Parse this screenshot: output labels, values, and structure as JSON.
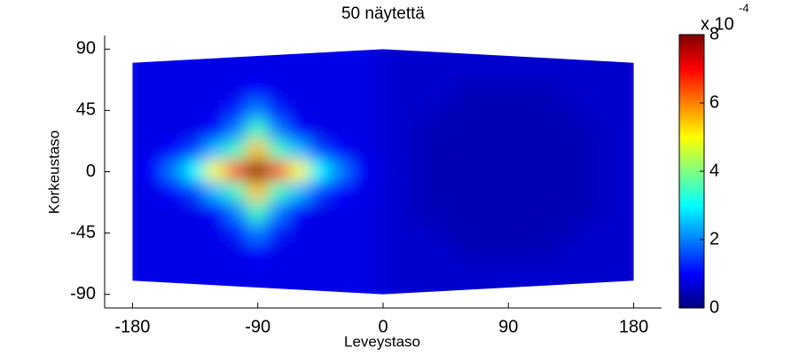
{
  "chart_data": {
    "type": "heatmap",
    "title": "50 näytettä",
    "xlabel": "Leveystaso",
    "ylabel": "Korkeustaso",
    "colormap": "jet",
    "x": [
      -180,
      -165,
      -150,
      -135,
      -120,
      -105,
      -90,
      -75,
      -60,
      -45,
      -30,
      -15,
      0,
      15,
      30,
      45,
      60,
      75,
      90,
      105,
      120,
      135,
      150,
      165,
      180
    ],
    "y": [
      90,
      75,
      60,
      45,
      30,
      15,
      0,
      -15,
      -30,
      -45,
      -60,
      -75,
      -90
    ],
    "values": [
      [
        0.8,
        0.8,
        0.8,
        0.8,
        0.8,
        0.8,
        0.8,
        0.8,
        0.8,
        0.8,
        0.8,
        0.8,
        0.7,
        0.6,
        0.6,
        0.6,
        0.6,
        0.6,
        0.6,
        0.6,
        0.6,
        0.6,
        0.6,
        0.6,
        0.6
      ],
      [
        0.8,
        0.8,
        0.8,
        0.8,
        0.8,
        0.8,
        0.8,
        0.8,
        0.8,
        0.8,
        0.8,
        0.8,
        0.7,
        0.6,
        0.6,
        0.6,
        0.6,
        0.6,
        0.6,
        0.6,
        0.6,
        0.6,
        0.6,
        0.6,
        0.6
      ],
      [
        0.8,
        0.8,
        0.8,
        0.8,
        0.8,
        0.8,
        1.0,
        0.8,
        0.8,
        0.8,
        0.8,
        0.8,
        0.7,
        0.6,
        0.6,
        0.6,
        0.45,
        0.45,
        0.45,
        0.45,
        0.45,
        0.6,
        0.6,
        0.6,
        0.6
      ],
      [
        0.8,
        0.8,
        0.8,
        0.8,
        0.8,
        1.2,
        2.0,
        1.2,
        0.8,
        0.8,
        0.8,
        0.8,
        0.7,
        0.6,
        0.6,
        0.45,
        0.45,
        0.4,
        0.4,
        0.4,
        0.45,
        0.45,
        0.6,
        0.6,
        0.6
      ],
      [
        0.8,
        0.8,
        0.8,
        0.8,
        1.0,
        2.0,
        3.5,
        2.0,
        1.0,
        0.8,
        0.8,
        0.8,
        0.7,
        0.6,
        0.45,
        0.45,
        0.4,
        0.4,
        0.4,
        0.4,
        0.4,
        0.45,
        0.45,
        0.6,
        0.6
      ],
      [
        0.8,
        0.8,
        1.0,
        1.5,
        2.5,
        3.5,
        5.5,
        3.5,
        2.5,
        1.5,
        1.0,
        0.8,
        0.7,
        0.6,
        0.45,
        0.4,
        0.4,
        0.4,
        0.4,
        0.4,
        0.4,
        0.4,
        0.45,
        0.6,
        0.6
      ],
      [
        0.8,
        1.0,
        2.0,
        3.0,
        5.0,
        6.5,
        8.0,
        6.5,
        5.0,
        3.0,
        2.0,
        1.0,
        0.7,
        0.6,
        0.45,
        0.4,
        0.4,
        0.4,
        0.4,
        0.4,
        0.4,
        0.4,
        0.45,
        0.6,
        0.6
      ],
      [
        0.8,
        0.8,
        1.0,
        1.5,
        2.5,
        3.5,
        5.5,
        3.5,
        2.5,
        1.5,
        1.0,
        0.8,
        0.7,
        0.6,
        0.45,
        0.4,
        0.4,
        0.4,
        0.4,
        0.4,
        0.4,
        0.4,
        0.45,
        0.6,
        0.6
      ],
      [
        0.8,
        0.8,
        0.8,
        0.8,
        1.0,
        2.0,
        3.5,
        2.0,
        1.0,
        0.8,
        0.8,
        0.8,
        0.7,
        0.6,
        0.45,
        0.45,
        0.4,
        0.4,
        0.4,
        0.4,
        0.4,
        0.45,
        0.45,
        0.6,
        0.6
      ],
      [
        0.8,
        0.8,
        0.8,
        0.8,
        0.8,
        1.2,
        2.0,
        1.2,
        0.8,
        0.8,
        0.8,
        0.8,
        0.7,
        0.6,
        0.6,
        0.45,
        0.45,
        0.4,
        0.4,
        0.4,
        0.45,
        0.45,
        0.6,
        0.6,
        0.6
      ],
      [
        0.8,
        0.8,
        0.8,
        0.8,
        0.8,
        0.8,
        1.0,
        0.8,
        0.8,
        0.8,
        0.8,
        0.8,
        0.7,
        0.6,
        0.6,
        0.6,
        0.45,
        0.45,
        0.45,
        0.45,
        0.45,
        0.6,
        0.6,
        0.6,
        0.6
      ],
      [
        0.8,
        0.8,
        0.8,
        0.8,
        0.8,
        0.8,
        0.8,
        0.8,
        0.8,
        0.8,
        0.8,
        0.8,
        0.7,
        0.6,
        0.6,
        0.6,
        0.6,
        0.6,
        0.6,
        0.6,
        0.6,
        0.6,
        0.6,
        0.6,
        0.6
      ],
      [
        0.8,
        0.8,
        0.8,
        0.8,
        0.8,
        0.8,
        0.8,
        0.8,
        0.8,
        0.8,
        0.8,
        0.8,
        0.7,
        0.6,
        0.6,
        0.6,
        0.6,
        0.6,
        0.6,
        0.6,
        0.6,
        0.6,
        0.6,
        0.6,
        0.6
      ]
    ],
    "boundary": {
      "x": [
        -180,
        0,
        180,
        180,
        0,
        -180
      ],
      "y": [
        80,
        90,
        80,
        -80,
        -90,
        -80
      ]
    },
    "xlim": [
      -200,
      200
    ],
    "ylim": [
      -100,
      100
    ],
    "xticks": [
      -180,
      -90,
      0,
      90,
      180
    ],
    "yticks": [
      -90,
      -45,
      0,
      45,
      90
    ],
    "colorbar": {
      "lim": [
        0,
        8
      ],
      "ticks": [
        0,
        2,
        4,
        6,
        8
      ],
      "multiplier": "x 10",
      "exponent": "-4"
    }
  }
}
